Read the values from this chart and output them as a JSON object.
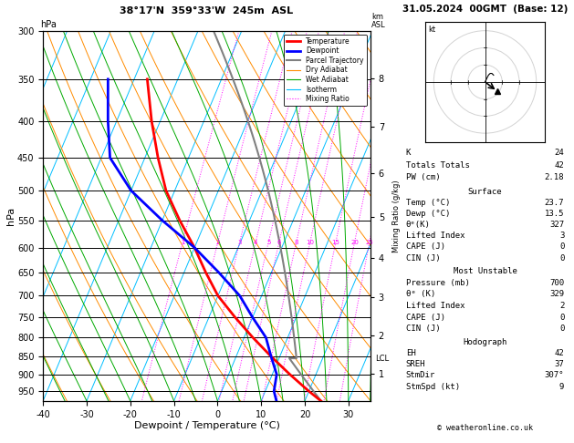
{
  "title_left": "38°17'N  359°33'W  245m  ASL",
  "title_right": "31.05.2024  00GMT  (Base: 12)",
  "xlabel": "Dewpoint / Temperature (°C)",
  "ylabel_left": "hPa",
  "ylabel_right_mr": "Mixing Ratio (g/kg)",
  "pressure_ticks": [
    300,
    350,
    400,
    450,
    500,
    550,
    600,
    650,
    700,
    750,
    800,
    850,
    900,
    950
  ],
  "temp_xlim": [
    -40,
    35
  ],
  "temp_xticks": [
    -40,
    -30,
    -20,
    -10,
    0,
    10,
    20,
    30
  ],
  "km_ticks": [
    1,
    2,
    3,
    4,
    5,
    6,
    7,
    8
  ],
  "km_pressures": [
    898,
    795,
    704,
    620,
    544,
    473,
    408,
    349
  ],
  "lcl_pressure": 855,
  "mixing_ratio_values": [
    1,
    2,
    3,
    4,
    5,
    6,
    8,
    10,
    15,
    20,
    25
  ],
  "T_temps": [
    -47,
    -42,
    -37,
    -32,
    -26,
    -20,
    -15,
    -10,
    -4,
    2,
    8,
    14,
    20,
    23.7
  ],
  "T_press": [
    350,
    400,
    450,
    500,
    550,
    600,
    650,
    700,
    750,
    800,
    850,
    900,
    950,
    980
  ],
  "D_temps": [
    -56,
    -52,
    -48,
    -40,
    -30,
    -20,
    -12,
    -5,
    0,
    5,
    8,
    11,
    12,
    13.5
  ],
  "D_press": [
    350,
    400,
    450,
    500,
    550,
    600,
    650,
    700,
    750,
    800,
    850,
    900,
    950,
    980
  ],
  "background_color": "#ffffff",
  "isotherm_color": "#00bfff",
  "dry_adiabat_color": "#ff8c00",
  "wet_adiabat_color": "#00aa00",
  "mixing_ratio_color": "#ff00ff",
  "temp_color": "#ff0000",
  "dewp_color": "#0000ff",
  "parcel_color": "#808080",
  "legend_items": [
    {
      "label": "Temperature",
      "color": "#ff0000",
      "lw": 2.0,
      "ls": "-"
    },
    {
      "label": "Dewpoint",
      "color": "#0000ff",
      "lw": 2.0,
      "ls": "-"
    },
    {
      "label": "Parcel Trajectory",
      "color": "#808080",
      "lw": 1.5,
      "ls": "-"
    },
    {
      "label": "Dry Adiabat",
      "color": "#ff8c00",
      "lw": 0.8,
      "ls": "-"
    },
    {
      "label": "Wet Adiabat",
      "color": "#00aa00",
      "lw": 0.8,
      "ls": "-"
    },
    {
      "label": "Isotherm",
      "color": "#00bfff",
      "lw": 0.8,
      "ls": "-"
    },
    {
      "label": "Mixing Ratio",
      "color": "#ff00ff",
      "lw": 0.8,
      "ls": ":"
    }
  ],
  "K": 24,
  "Totals_Totals": 42,
  "PW_cm": "2.18",
  "Surface_Temp": "23.7",
  "Surface_Dewp": "13.5",
  "Surface_theta_e": 327,
  "Surface_LI": 3,
  "Surface_CAPE": 0,
  "Surface_CIN": 0,
  "MU_Pressure": 700,
  "MU_theta_e": 329,
  "MU_LI": 2,
  "MU_CAPE": 0,
  "MU_CIN": 0,
  "EH": 42,
  "SREH": 37,
  "StmDir": "307°",
  "StmSpd": 9,
  "pmin": 300,
  "pmax": 980,
  "skew": 30.0,
  "Rd_Cp": 0.2854
}
